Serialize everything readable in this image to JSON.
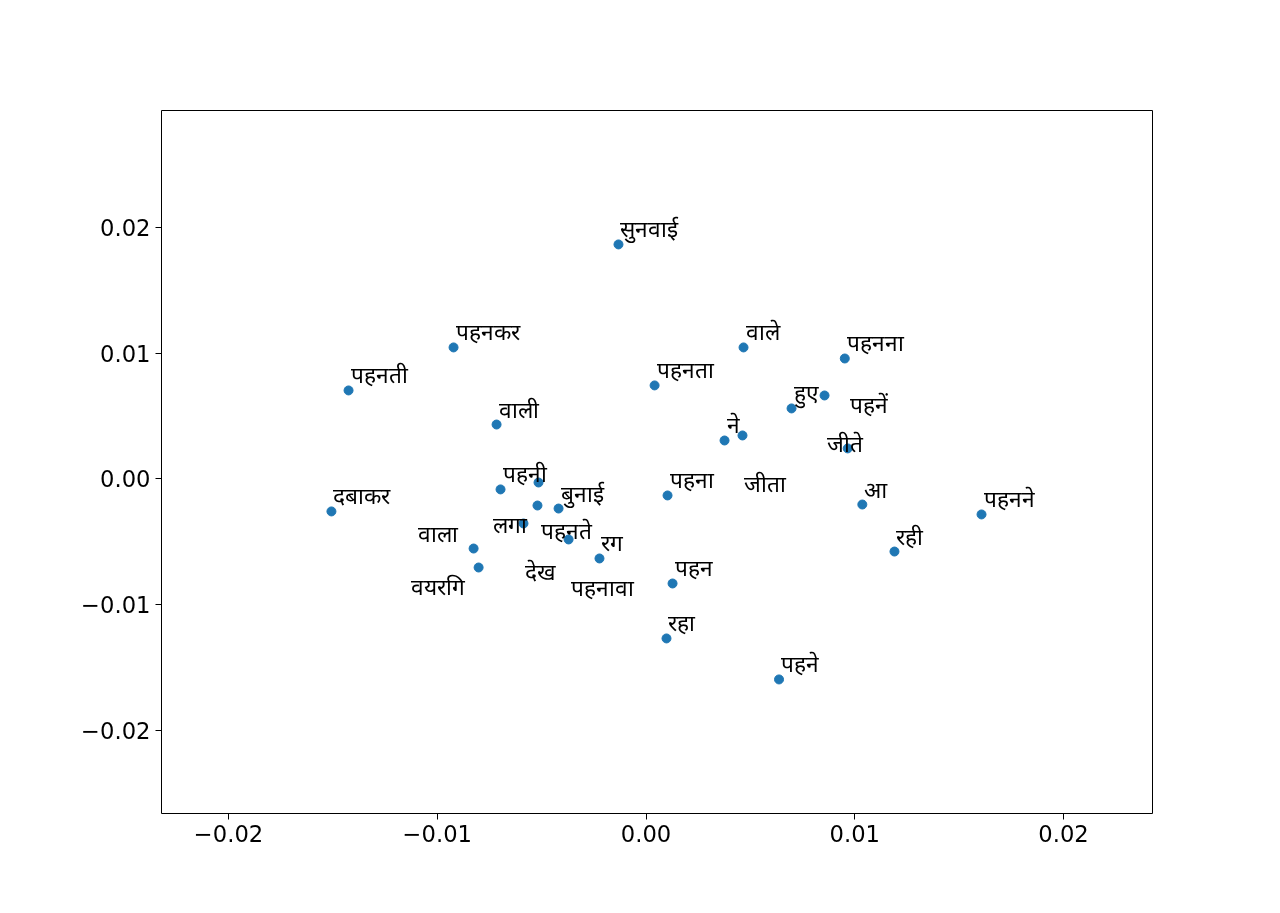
{
  "chart_data": {
    "type": "scatter",
    "marker": "circle",
    "grid": false,
    "xlim": [
      -0.02321,
      0.02426
    ],
    "ylim": [
      -0.0266,
      0.0293
    ],
    "xticks": [
      {
        "value": -0.02,
        "label": "−0.02"
      },
      {
        "value": -0.01,
        "label": "−0.01"
      },
      {
        "value": 0,
        "label": "0.00"
      },
      {
        "value": 0.01,
        "label": "0.01"
      },
      {
        "value": 0.02,
        "label": "0.02"
      }
    ],
    "yticks": [
      {
        "value": -0.02,
        "label": "−0.02"
      },
      {
        "value": -0.01,
        "label": "−0.01"
      },
      {
        "value": 0,
        "label": "0.00"
      },
      {
        "value": 0.01,
        "label": "0.01"
      },
      {
        "value": 0.02,
        "label": "0.02"
      }
    ],
    "series": [
      {
        "color": "#1f77b4",
        "x": [
          -0.00132,
          -0.00922,
          -0.01425,
          -0.00716,
          0.00041,
          0.00467,
          0.00952,
          0.00697,
          0.00855,
          0.00376,
          0.00462,
          0.00966,
          -0.01507,
          -0.00697,
          -0.00515,
          -0.0052,
          -0.00419,
          -0.00587,
          -0.00371,
          -0.00826,
          -0.00802,
          -0.00223,
          0.00103,
          0.01036,
          0.01607,
          0.0119,
          0.00127,
          0.00098,
          0.00637
        ],
        "values": [
          0.01865,
          0.01046,
          0.00704,
          0.00433,
          0.00744,
          0.01046,
          0.00958,
          0.00561,
          0.00664,
          0.00306,
          0.00346,
          0.00243,
          -0.00258,
          -0.00083,
          -0.00028,
          -0.00211,
          -0.00235,
          -0.00354,
          -0.00481,
          -0.00553,
          -0.00704,
          -0.00632,
          -0.00131,
          -0.00203,
          -0.00282,
          -0.00577,
          -0.00831,
          -0.01268,
          -0.01594
        ]
      }
    ],
    "annotations": [
      {
        "text": "सुनवाई",
        "x": -0.00132,
        "y": 0.01865
      },
      {
        "text": "पहनकर",
        "x": -0.00922,
        "y": 0.01046
      },
      {
        "text": "पहनती",
        "x": -0.01425,
        "y": 0.00704
      },
      {
        "text": "वाली",
        "x": -0.00716,
        "y": 0.00433
      },
      {
        "text": "पहनता",
        "x": 0.00041,
        "y": 0.00744
      },
      {
        "text": "वाले",
        "x": 0.00467,
        "y": 0.01046
      },
      {
        "text": "पहनना",
        "x": 0.00952,
        "y": 0.00958
      },
      {
        "text": "हुए",
        "x": 0.00697,
        "y": 0.00561
      },
      {
        "text": "जीते",
        "x": 0.00855,
        "y": 0.00664
      },
      {
        "text": "ने",
        "x": 0.00376,
        "y": 0.00306
      },
      {
        "text": "जीता",
        "x": 0.00462,
        "y": 0.00346
      },
      {
        "text": "पहनें",
        "x": 0.00966,
        "y": 0.00243
      },
      {
        "text": "दबाकर",
        "x": -0.01507,
        "y": -0.00258
      },
      {
        "text": "पहनी",
        "x": -0.00697,
        "y": -0.00083
      },
      {
        "text": "पहनते",
        "x": -0.00515,
        "y": -0.00028
      },
      {
        "text": "लगा",
        "x": -0.0052,
        "y": -0.00211
      },
      {
        "text": "बुनाई",
        "x": -0.00419,
        "y": -0.00235
      },
      {
        "text": "देख",
        "x": -0.00587,
        "y": -0.00354
      },
      {
        "text": "पहनावा",
        "x": -0.00371,
        "y": -0.00481
      },
      {
        "text": "वाला",
        "x": -0.00826,
        "y": -0.00553
      },
      {
        "text": "वयरगि",
        "x": -0.00802,
        "y": -0.00704
      },
      {
        "text": "रग",
        "x": -0.00223,
        "y": -0.00632
      },
      {
        "text": "पहना",
        "x": 0.00103,
        "y": -0.00131
      },
      {
        "text": "आ",
        "x": 0.01036,
        "y": -0.00203
      },
      {
        "text": "पहनने",
        "x": 0.01607,
        "y": -0.00282
      },
      {
        "text": "रही",
        "x": 0.0119,
        "y": -0.00577
      },
      {
        "text": "पहन",
        "x": 0.00127,
        "y": -0.00831
      },
      {
        "text": "रहा",
        "x": 0.00098,
        "y": -0.01268
      },
      {
        "text": "पहने",
        "x": 0.00637,
        "y": -0.01594
      }
    ]
  }
}
